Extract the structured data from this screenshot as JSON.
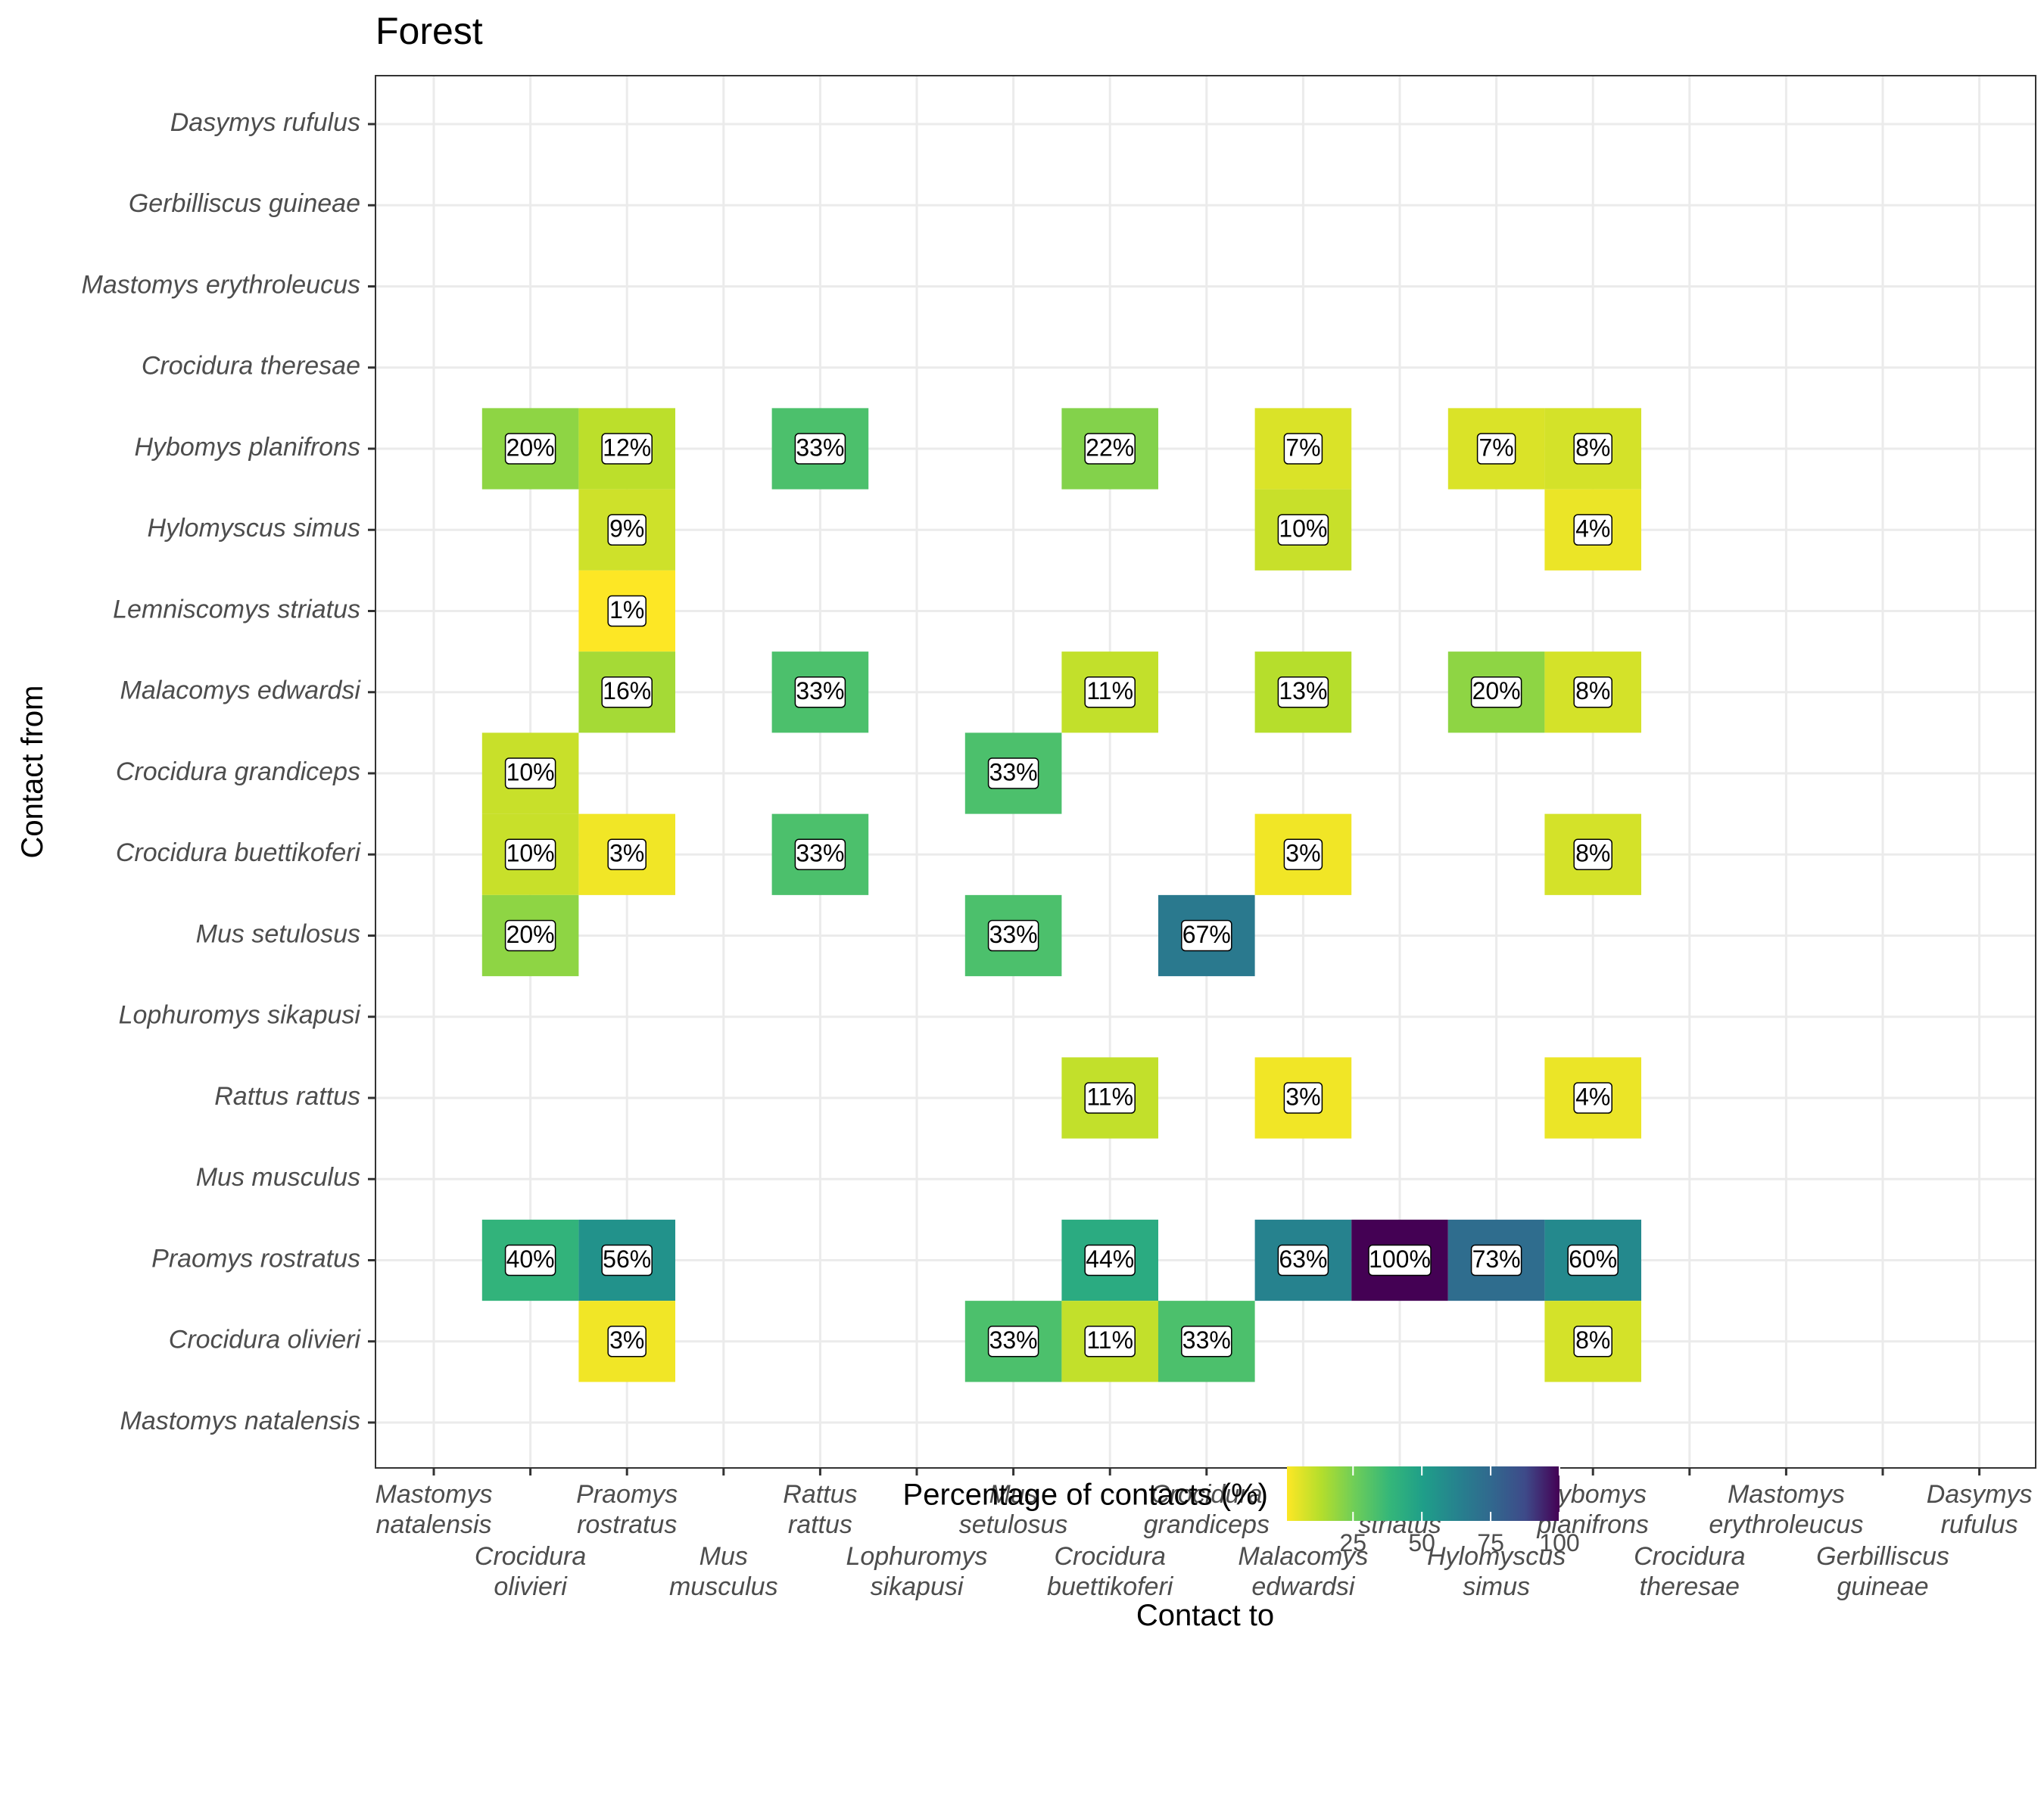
{
  "chart_data": {
    "type": "heatmap",
    "title": "Forest",
    "xlabel": "Contact to",
    "ylabel": "Contact from",
    "x_categories": [
      "Mastomys natalensis",
      "Crocidura olivieri",
      "Praomys rostratus",
      "Mus musculus",
      "Rattus rattus",
      "Lophuromys sikapusi",
      "Mus setulosus",
      "Crocidura buettikoferi",
      "Crocidura grandiceps",
      "Malacomys edwardsi",
      "Lemniscomys striatus",
      "Hylomyscus simus",
      "Hybomys planifrons",
      "Crocidura theresae",
      "Mastomys erythroleucus",
      "Gerbilliscus guineae",
      "Dasymys rufulus"
    ],
    "x_tick_lines": [
      [
        "Mastomys",
        "natalensis"
      ],
      [
        "Crocidura",
        "olivieri"
      ],
      [
        "Praomys",
        "rostratus"
      ],
      [
        "Mus",
        "musculus"
      ],
      [
        "Rattus",
        "rattus"
      ],
      [
        "Lophuromys",
        "sikapusi"
      ],
      [
        "Mus",
        "setulosus"
      ],
      [
        "Crocidura",
        "buettikoferi"
      ],
      [
        "Crocidura",
        "grandiceps"
      ],
      [
        "Malacomys",
        "edwardsi"
      ],
      [
        "Lemniscomys",
        "striatus"
      ],
      [
        "Hylomyscus",
        "simus"
      ],
      [
        "Hybomys",
        "planifrons"
      ],
      [
        "Crocidura",
        "theresae"
      ],
      [
        "Mastomys",
        "erythroleucus"
      ],
      [
        "Gerbilliscus",
        "guineae"
      ],
      [
        "Dasymys",
        "rufulus"
      ]
    ],
    "y_categories": [
      "Dasymys rufulus",
      "Gerbilliscus guineae",
      "Mastomys erythroleucus",
      "Crocidura theresae",
      "Hybomys planifrons",
      "Hylomyscus simus",
      "Lemniscomys striatus",
      "Malacomys edwardsi",
      "Crocidura grandiceps",
      "Crocidura buettikoferi",
      "Mus setulosus",
      "Lophuromys sikapusi",
      "Rattus rattus",
      "Mus musculus",
      "Praomys rostratus",
      "Crocidura olivieri",
      "Mastomys natalensis"
    ],
    "cells": [
      {
        "from": "Hybomys planifrons",
        "to": "Crocidura olivieri",
        "value": 20,
        "label": "20%"
      },
      {
        "from": "Hybomys planifrons",
        "to": "Praomys rostratus",
        "value": 12,
        "label": "12%"
      },
      {
        "from": "Hybomys planifrons",
        "to": "Rattus rattus",
        "value": 33,
        "label": "33%"
      },
      {
        "from": "Hybomys planifrons",
        "to": "Crocidura buettikoferi",
        "value": 22,
        "label": "22%"
      },
      {
        "from": "Hybomys planifrons",
        "to": "Malacomys edwardsi",
        "value": 7,
        "label": "7%"
      },
      {
        "from": "Hybomys planifrons",
        "to": "Hylomyscus simus",
        "value": 7,
        "label": "7%"
      },
      {
        "from": "Hybomys planifrons",
        "to": "Hybomys planifrons",
        "value": 8,
        "label": "8%"
      },
      {
        "from": "Hylomyscus simus",
        "to": "Praomys rostratus",
        "value": 9,
        "label": "9%"
      },
      {
        "from": "Hylomyscus simus",
        "to": "Malacomys edwardsi",
        "value": 10,
        "label": "10%"
      },
      {
        "from": "Hylomyscus simus",
        "to": "Hybomys planifrons",
        "value": 4,
        "label": "4%"
      },
      {
        "from": "Lemniscomys striatus",
        "to": "Praomys rostratus",
        "value": 1,
        "label": "1%"
      },
      {
        "from": "Malacomys edwardsi",
        "to": "Praomys rostratus",
        "value": 16,
        "label": "16%"
      },
      {
        "from": "Malacomys edwardsi",
        "to": "Rattus rattus",
        "value": 33,
        "label": "33%"
      },
      {
        "from": "Malacomys edwardsi",
        "to": "Crocidura buettikoferi",
        "value": 11,
        "label": "11%"
      },
      {
        "from": "Malacomys edwardsi",
        "to": "Malacomys edwardsi",
        "value": 13,
        "label": "13%"
      },
      {
        "from": "Malacomys edwardsi",
        "to": "Hylomyscus simus",
        "value": 20,
        "label": "20%"
      },
      {
        "from": "Malacomys edwardsi",
        "to": "Hybomys planifrons",
        "value": 8,
        "label": "8%"
      },
      {
        "from": "Crocidura grandiceps",
        "to": "Crocidura olivieri",
        "value": 10,
        "label": "10%"
      },
      {
        "from": "Crocidura grandiceps",
        "to": "Mus setulosus",
        "value": 33,
        "label": "33%"
      },
      {
        "from": "Crocidura buettikoferi",
        "to": "Crocidura olivieri",
        "value": 10,
        "label": "10%"
      },
      {
        "from": "Crocidura buettikoferi",
        "to": "Praomys rostratus",
        "value": 3,
        "label": "3%"
      },
      {
        "from": "Crocidura buettikoferi",
        "to": "Rattus rattus",
        "value": 33,
        "label": "33%"
      },
      {
        "from": "Crocidura buettikoferi",
        "to": "Malacomys edwardsi",
        "value": 3,
        "label": "3%"
      },
      {
        "from": "Crocidura buettikoferi",
        "to": "Hybomys planifrons",
        "value": 8,
        "label": "8%"
      },
      {
        "from": "Mus setulosus",
        "to": "Crocidura olivieri",
        "value": 20,
        "label": "20%"
      },
      {
        "from": "Mus setulosus",
        "to": "Mus setulosus",
        "value": 33,
        "label": "33%"
      },
      {
        "from": "Mus setulosus",
        "to": "Crocidura grandiceps",
        "value": 67,
        "label": "67%"
      },
      {
        "from": "Rattus rattus",
        "to": "Crocidura buettikoferi",
        "value": 11,
        "label": "11%"
      },
      {
        "from": "Rattus rattus",
        "to": "Malacomys edwardsi",
        "value": 3,
        "label": "3%"
      },
      {
        "from": "Rattus rattus",
        "to": "Hybomys planifrons",
        "value": 4,
        "label": "4%"
      },
      {
        "from": "Praomys rostratus",
        "to": "Crocidura olivieri",
        "value": 40,
        "label": "40%"
      },
      {
        "from": "Praomys rostratus",
        "to": "Praomys rostratus",
        "value": 56,
        "label": "56%"
      },
      {
        "from": "Praomys rostratus",
        "to": "Crocidura buettikoferi",
        "value": 44,
        "label": "44%"
      },
      {
        "from": "Praomys rostratus",
        "to": "Malacomys edwardsi",
        "value": 63,
        "label": "63%"
      },
      {
        "from": "Praomys rostratus",
        "to": "Lemniscomys striatus",
        "value": 100,
        "label": "100%"
      },
      {
        "from": "Praomys rostratus",
        "to": "Hylomyscus simus",
        "value": 73,
        "label": "73%"
      },
      {
        "from": "Praomys rostratus",
        "to": "Hybomys planifrons",
        "value": 60,
        "label": "60%"
      },
      {
        "from": "Crocidura olivieri",
        "to": "Praomys rostratus",
        "value": 3,
        "label": "3%"
      },
      {
        "from": "Crocidura olivieri",
        "to": "Mus setulosus",
        "value": 33,
        "label": "33%"
      },
      {
        "from": "Crocidura olivieri",
        "to": "Crocidura buettikoferi",
        "value": 11,
        "label": "11%"
      },
      {
        "from": "Crocidura olivieri",
        "to": "Crocidura grandiceps",
        "value": 33,
        "label": "33%"
      },
      {
        "from": "Crocidura olivieri",
        "to": "Hybomys planifrons",
        "value": 8,
        "label": "8%"
      }
    ],
    "legend": {
      "title": "Percentage of contacts (%)",
      "ticks": [
        25,
        50,
        75,
        100
      ],
      "range": [
        1,
        100
      ],
      "palette": "viridis (reversed)",
      "placement": "bottom"
    },
    "grid": true
  }
}
